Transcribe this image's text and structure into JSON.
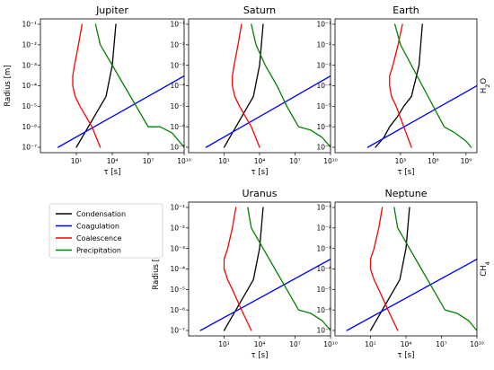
{
  "chart_data": {
    "type": "line",
    "x_scale": "log",
    "y_scale": "log",
    "xlabel": "τ [s]",
    "ylabel": "Radius [m]",
    "ylim": [
      1e-07,
      0.1
    ],
    "legend": {
      "placement": "left, beside bottom row",
      "entries": [
        {
          "name": "Condensation",
          "color": "#000000"
        },
        {
          "name": "Coagulation",
          "color": "#0000ff"
        },
        {
          "name": "Coalescence",
          "color": "#ff0000"
        },
        {
          "name": "Precipitation",
          "color": "#008000"
        }
      ]
    },
    "row_labels": {
      "top": "H2O",
      "bottom": "CH4"
    },
    "panels": [
      {
        "title": "Jupiter",
        "xlim": [
          0.01,
          10000000000.0
        ],
        "xticks": [
          1,
          4,
          7,
          10
        ],
        "xtick_labels": [
          "10¹",
          "10⁴",
          "10⁷",
          "10¹⁰"
        ],
        "series": [
          {
            "name": "Condensation",
            "x": [
              10,
              30,
              100,
              300,
              1000,
              3000,
              10000,
              20000
            ],
            "y": [
              1e-07,
              3e-07,
              1e-06,
              3e-06,
              1e-05,
              3e-05,
              0.001,
              0.1
            ]
          },
          {
            "name": "Coagulation",
            "x": [
              0.3,
              10000000000.0
            ],
            "y": [
              1e-07,
              0.0003
            ]
          },
          {
            "name": "Coalescence",
            "x": [
              30,
              15,
              7,
              5,
              5,
              8,
              20,
              200,
              1000
            ],
            "y": [
              0.1,
              0.01,
              0.001,
              0.0003,
              0.0001,
              3e-05,
              1e-05,
              1e-06,
              1e-07
            ]
          },
          {
            "name": "Precipitation",
            "x": [
              400,
              1000,
              10000,
              100000,
              1000000.0,
              10000000.0,
              100000000.0,
              1000000000.0,
              10000000000.0
            ],
            "y": [
              0.1,
              0.01,
              0.001,
              0.0001,
              1e-05,
              1e-06,
              1e-06,
              5e-07,
              1e-07
            ]
          }
        ]
      },
      {
        "title": "Saturn",
        "xlim": [
          0.01,
          10000000000.0
        ],
        "xticks": [
          1,
          4,
          7,
          10
        ],
        "xtick_labels": [
          "10¹",
          "10⁴",
          "10⁷",
          "10¹⁰"
        ],
        "series": [
          {
            "name": "Condensation",
            "x": [
              10,
              30,
              100,
              300,
              1000,
              3000,
              10000,
              20000
            ],
            "y": [
              1e-07,
              3e-07,
              1e-06,
              3e-06,
              1e-05,
              3e-05,
              0.001,
              0.1
            ]
          },
          {
            "name": "Coagulation",
            "x": [
              0.3,
              10000000000.0
            ],
            "y": [
              1e-07,
              0.0003
            ]
          },
          {
            "name": "Coalescence",
            "x": [
              300,
              150,
              70,
              50,
              50,
              80,
              200,
              2000,
              10000
            ],
            "y": [
              0.1,
              0.01,
              0.001,
              0.0003,
              0.0001,
              3e-05,
              1e-05,
              1e-06,
              1e-07
            ]
          },
          {
            "name": "Precipitation",
            "x": [
              2000,
              5000,
              30000,
              300000,
              2000000.0,
              20000000.0,
              200000000.0,
              2000000000.0,
              10000000000.0
            ],
            "y": [
              0.1,
              0.01,
              0.001,
              0.0001,
              1e-05,
              1e-06,
              7e-07,
              3e-07,
              1e-07
            ]
          }
        ]
      },
      {
        "title": "Earth",
        "xlim": [
          0.001,
          10000000000.0
        ],
        "xticks": [
          3,
          6,
          9
        ],
        "xtick_labels": [
          "10³",
          "10⁶",
          "10⁹"
        ],
        "series": [
          {
            "name": "Condensation",
            "x": [
              5,
              30,
              100,
              500,
              2000,
              10000,
              50000,
              100000
            ],
            "y": [
              1e-07,
              3e-07,
              1e-06,
              3e-06,
              1e-05,
              3e-05,
              0.001,
              0.1
            ]
          },
          {
            "name": "Coagulation",
            "x": [
              1,
              10000000000.0
            ],
            "y": [
              1e-07,
              0.0001
            ]
          },
          {
            "name": "Coalescence",
            "x": [
              1500,
              600,
              200,
              100,
              100,
              150,
              400,
              2000,
              10000
            ],
            "y": [
              0.1,
              0.01,
              0.001,
              0.0003,
              0.0001,
              3e-05,
              1e-05,
              1e-06,
              1e-07
            ]
          },
          {
            "name": "Precipitation",
            "x": [
              300,
              1000,
              10000,
              100000,
              1000000.0,
              10000000.0,
              100000000.0,
              1000000000.0,
              3000000000.0
            ],
            "y": [
              0.1,
              0.01,
              0.001,
              0.0001,
              1e-05,
              1e-06,
              5e-07,
              2e-07,
              1e-07
            ]
          }
        ]
      },
      {
        "title": "Uranus",
        "xlim": [
          0.01,
          10000000000.0
        ],
        "xticks": [
          1,
          4,
          7,
          10
        ],
        "xtick_labels": [
          "10¹",
          "10⁴",
          "10⁷",
          "10¹⁰"
        ],
        "series": [
          {
            "name": "Condensation",
            "x": [
              10,
              30,
              100,
              300,
              1000,
              3000,
              10000,
              20000
            ],
            "y": [
              1e-07,
              3e-07,
              1e-06,
              3e-06,
              1e-05,
              3e-05,
              0.001,
              0.1
            ]
          },
          {
            "name": "Coagulation",
            "x": [
              0.1,
              10000000000.0
            ],
            "y": [
              1e-07,
              0.0003
            ]
          },
          {
            "name": "Coalescence",
            "x": [
              100,
              50,
              20,
              10,
              10,
              20,
              50,
              300,
              2000
            ],
            "y": [
              0.1,
              0.01,
              0.001,
              0.0003,
              0.0001,
              3e-05,
              1e-05,
              1e-06,
              1e-07
            ]
          },
          {
            "name": "Precipitation",
            "x": [
              1000,
              2000,
              20000,
              200000,
              2000000.0,
              20000000.0,
              200000000.0,
              2000000000.0,
              10000000000.0
            ],
            "y": [
              0.1,
              0.01,
              0.001,
              0.0001,
              1e-05,
              1e-06,
              7e-07,
              3e-07,
              1e-07
            ]
          }
        ]
      },
      {
        "title": "Neptune",
        "xlim": [
          0.01,
          10000000000.0
        ],
        "xticks": [
          1,
          4,
          7,
          10
        ],
        "xtick_labels": [
          "10¹",
          "10⁴",
          "10⁷",
          "10¹⁰"
        ],
        "series": [
          {
            "name": "Condensation",
            "x": [
              10,
              30,
              100,
              300,
              1000,
              3000,
              10000,
              20000
            ],
            "y": [
              1e-07,
              3e-07,
              1e-06,
              3e-06,
              1e-05,
              3e-05,
              0.001,
              0.1
            ]
          },
          {
            "name": "Coagulation",
            "x": [
              0.1,
              10000000000.0
            ],
            "y": [
              1e-07,
              0.0003
            ]
          },
          {
            "name": "Coalescence",
            "x": [
              100,
              50,
              20,
              10,
              10,
              20,
              50,
              300,
              2000
            ],
            "y": [
              0.1,
              0.01,
              0.001,
              0.0003,
              0.0001,
              3e-05,
              1e-05,
              1e-06,
              1e-07
            ]
          },
          {
            "name": "Precipitation",
            "x": [
              1000,
              2000,
              20000,
              200000,
              2000000.0,
              20000000.0,
              200000000.0,
              2000000000.0,
              10000000000.0
            ],
            "y": [
              0.1,
              0.01,
              0.001,
              0.0001,
              1e-05,
              1e-06,
              7e-07,
              3e-07,
              1e-07
            ]
          }
        ]
      }
    ]
  }
}
